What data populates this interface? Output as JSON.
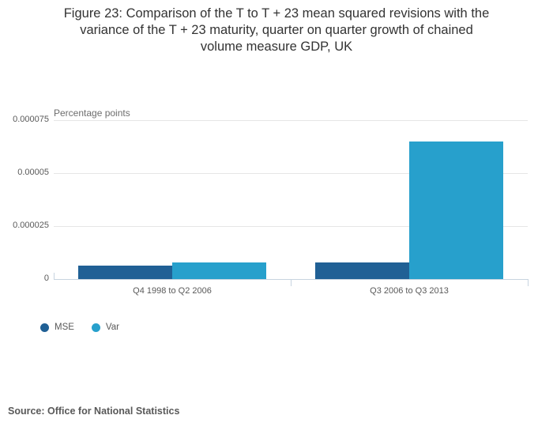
{
  "figure": {
    "title_lines": [
      "Figure 23: Comparison of the T to T + 23 mean squared revisions with the",
      "variance of the T + 23 maturity, quarter on quarter growth of chained",
      "volume measure GDP, UK"
    ],
    "source": "Source: Office for National Statistics"
  },
  "chart_data": {
    "type": "bar",
    "title": "Figure 23: Comparison of the T to T + 23 mean squared revisions with the variance of the T + 23 maturity, quarter on quarter growth of chained volume measure GDP, UK",
    "unit_label": "Percentage points",
    "categories": [
      "Q4 1998 to Q2 2006",
      "Q3 2006 to Q3 2013"
    ],
    "series": [
      {
        "name": "MSE",
        "color": "#206095",
        "values": [
          6.5e-06,
          7.8e-06
        ]
      },
      {
        "name": "Var",
        "color": "#27a0cc",
        "values": [
          7.7e-06,
          6.5e-05
        ]
      }
    ],
    "xlabel": "",
    "ylabel": "Percentage points",
    "ylim": [
      0,
      7.5e-05
    ],
    "yticks": [
      0,
      2.5e-05,
      5e-05,
      7.5e-05
    ],
    "ytick_labels": [
      "0",
      "0.000025",
      "0.00005",
      "0.000075"
    ],
    "grid": true,
    "legend_position": "bottom-left",
    "colors": {
      "grid": "#e6e6e6",
      "axis": "#c7d4e0",
      "tick_text": "#595959",
      "title_text": "#333333"
    }
  }
}
